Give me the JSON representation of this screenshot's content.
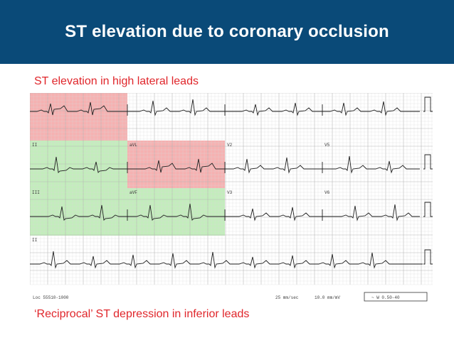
{
  "slide": {
    "title": "ST elevation due to coronary occlusion",
    "caption_top": "ST elevation in high lateral leads",
    "caption_bottom": "‘Reciprocal’ ST depression in inferior leads"
  },
  "colors": {
    "header_bg": "#0a4a78",
    "caption_color": "#e0262b",
    "highlight_red": "#f4a3a3",
    "highlight_green": "#b8eab0",
    "grid_minor": "#d9d9d9",
    "grid_major": "#b8b8b8",
    "trace": "#222222"
  },
  "ecg": {
    "leads": [
      {
        "id": "lead-i",
        "label": "",
        "row": 0,
        "col": 0,
        "st": 1
      },
      {
        "id": "lead-avr",
        "label": "",
        "row": 0,
        "col": 1,
        "st": 0
      },
      {
        "id": "lead-v1",
        "label": "",
        "row": 0,
        "col": 2,
        "st": 0
      },
      {
        "id": "lead-v4",
        "label": "",
        "row": 0,
        "col": 3,
        "st": 0
      },
      {
        "id": "lead-ii",
        "label": "II",
        "row": 1,
        "col": 0,
        "st": -1
      },
      {
        "id": "lead-avl",
        "label": "aVL",
        "row": 1,
        "col": 1,
        "st": 1
      },
      {
        "id": "lead-v2",
        "label": "V2",
        "row": 1,
        "col": 2,
        "st": 0
      },
      {
        "id": "lead-v5",
        "label": "V5",
        "row": 1,
        "col": 3,
        "st": 0
      },
      {
        "id": "lead-iii",
        "label": "III",
        "row": 2,
        "col": 0,
        "st": -1
      },
      {
        "id": "lead-avf",
        "label": "aVF",
        "row": 2,
        "col": 1,
        "st": -1
      },
      {
        "id": "lead-v3",
        "label": "V3",
        "row": 2,
        "col": 2,
        "st": 0
      },
      {
        "id": "lead-v6",
        "label": "V6",
        "row": 2,
        "col": 3,
        "st": 0
      },
      {
        "id": "lead-ii-rhythm",
        "label": "II",
        "row": 3,
        "col": -1,
        "st": 0
      }
    ],
    "highlights": [
      {
        "id": "hl-lead-i",
        "color": "red",
        "row": 0,
        "col": 0
      },
      {
        "id": "hl-lead-avl",
        "color": "red",
        "row": 1,
        "col": 1
      },
      {
        "id": "hl-lead-ii",
        "color": "green",
        "row": 1,
        "col": 0
      },
      {
        "id": "hl-lead-iii",
        "color": "green",
        "row": 2,
        "col": 0
      },
      {
        "id": "hl-lead-avf",
        "color": "green",
        "row": 2,
        "col": 1
      }
    ],
    "footer": {
      "loc": "Loc 55510-1000",
      "speed": "25 mm/sec",
      "gain": "10.0 mm/mV",
      "filter": "~ W 0.50-40"
    }
  }
}
